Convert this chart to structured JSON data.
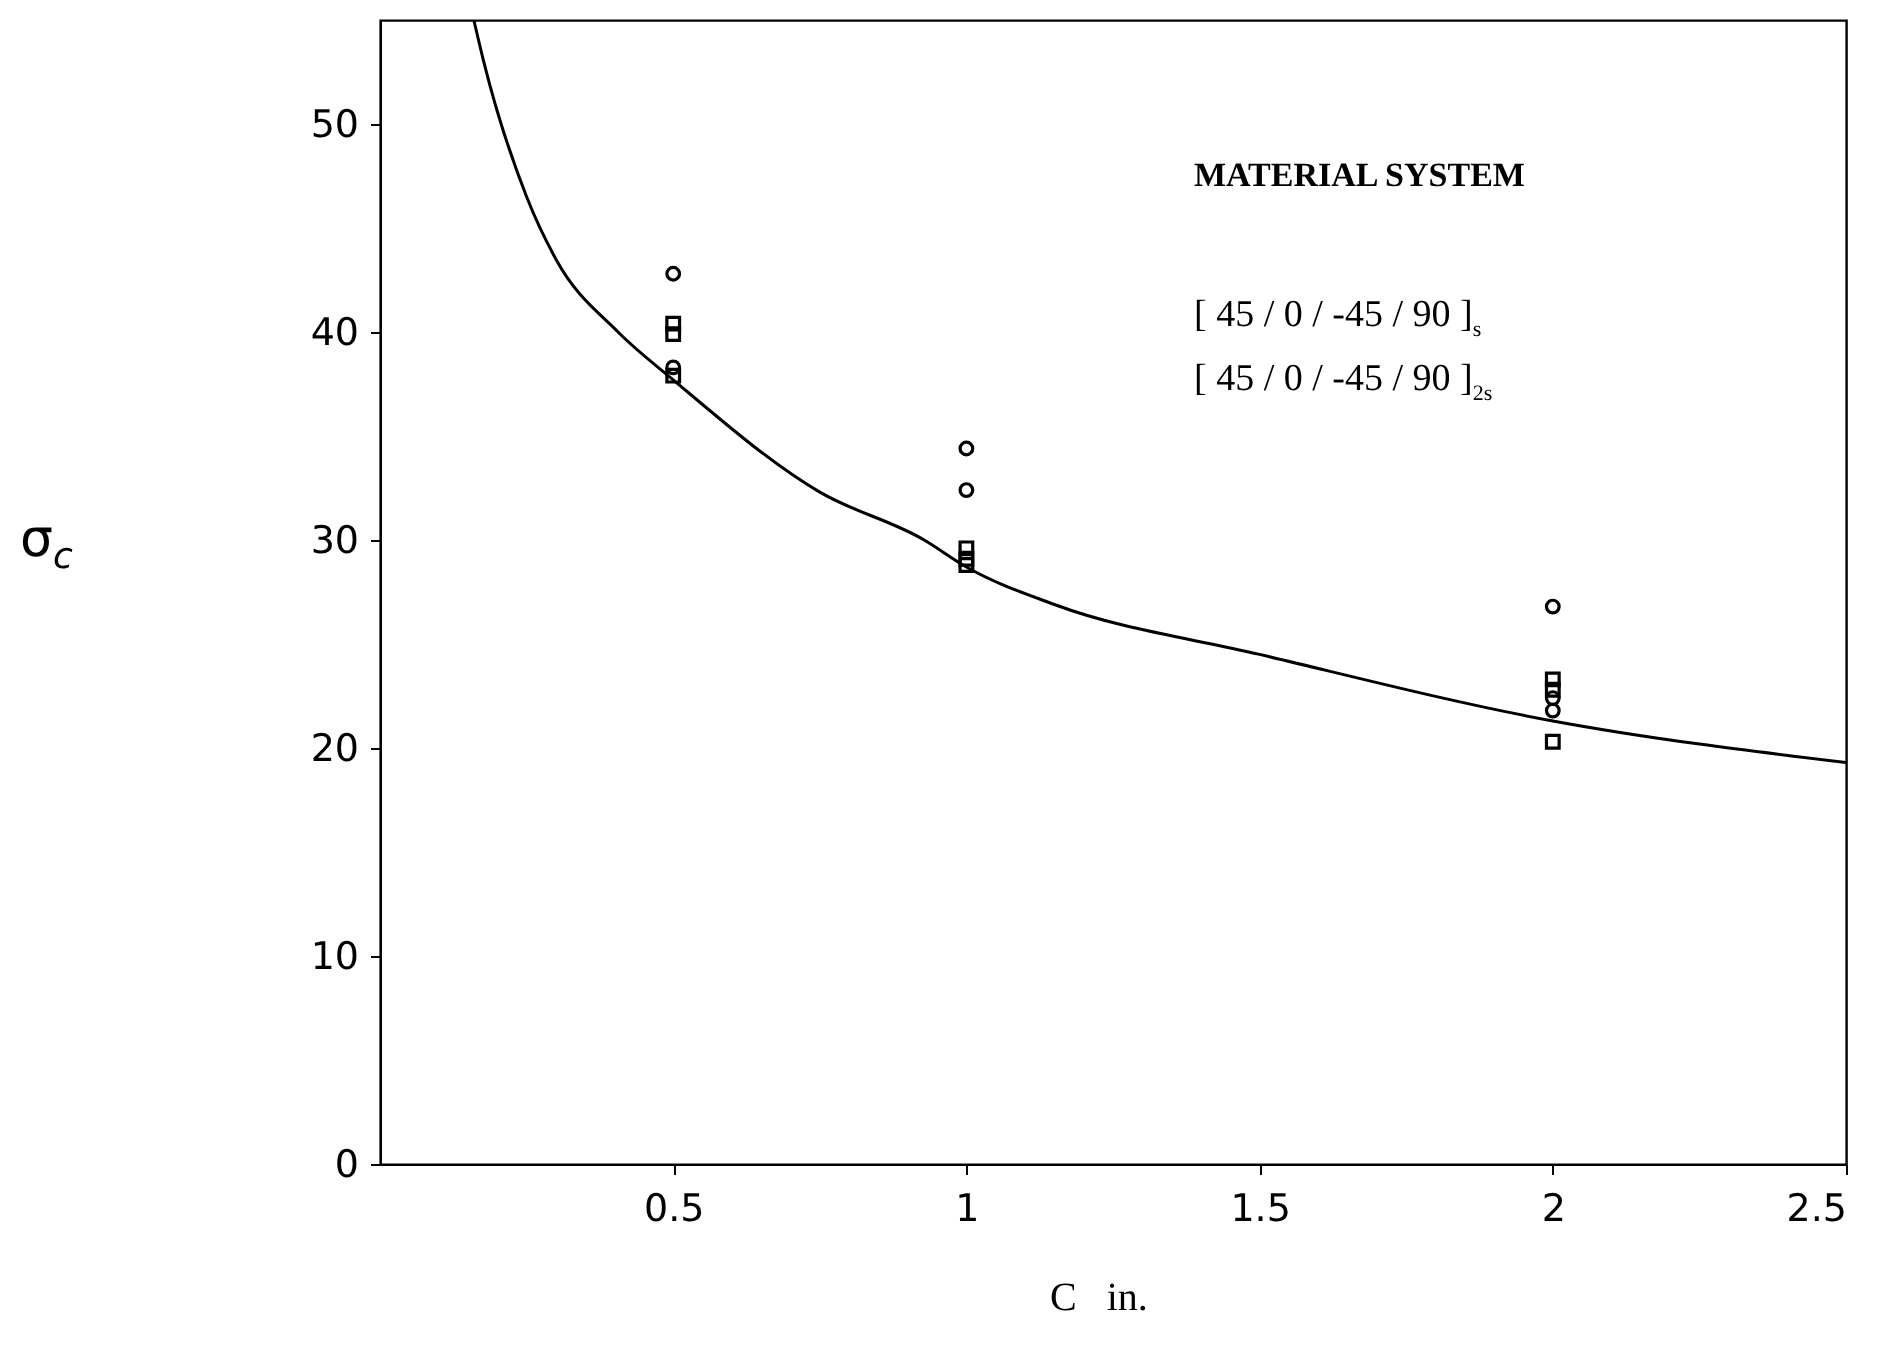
{
  "chart_data": {
    "type": "scatter",
    "xlabel": "C   in.",
    "ylabel": "σ$_{c}$",
    "xlim": [
      0,
      2.5
    ],
    "xticks": [
      0.5,
      1,
      1.5,
      2,
      2.5
    ],
    "ylim": [
      0,
      55
    ],
    "yticks": [
      0,
      10,
      20,
      30,
      40,
      50
    ],
    "grid": false,
    "annotations": [
      "MATERIAL SYSTEM",
      "[ 45 / 0 / -45 / 90 ]$_{s}$",
      "[ 45 / 0 / -45 / 90 ]$_{2s}$"
    ],
    "series": [
      {
        "marker": "circle",
        "color": "#000000",
        "x": [
          0.5,
          0.5,
          1,
          1,
          2,
          2,
          2
        ],
        "values": [
          42.8,
          38.3,
          34.4,
          32.4,
          26.8,
          22.4,
          21.8
        ]
      },
      {
        "marker": "square",
        "color": "#000000",
        "x": [
          0.5,
          0.5,
          0.5,
          1,
          1,
          1,
          2,
          2,
          2
        ],
        "values": [
          40.4,
          39.9,
          37.9,
          29.6,
          29.1,
          28.8,
          23.3,
          22.8,
          20.3
        ]
      },
      {
        "type": "line",
        "color": "#000000",
        "x": [
          0.16,
          0.176,
          0.25,
          0.3,
          0.406,
          0.5,
          0.75,
          0.928,
          1,
          1.15,
          1.5,
          2,
          2.5
        ],
        "values": [
          55,
          53.1,
          46.5,
          43.5,
          40,
          37.7,
          32.3,
          30,
          28.7,
          26.9,
          24.5,
          21.3,
          19.3
        ]
      }
    ]
  }
}
